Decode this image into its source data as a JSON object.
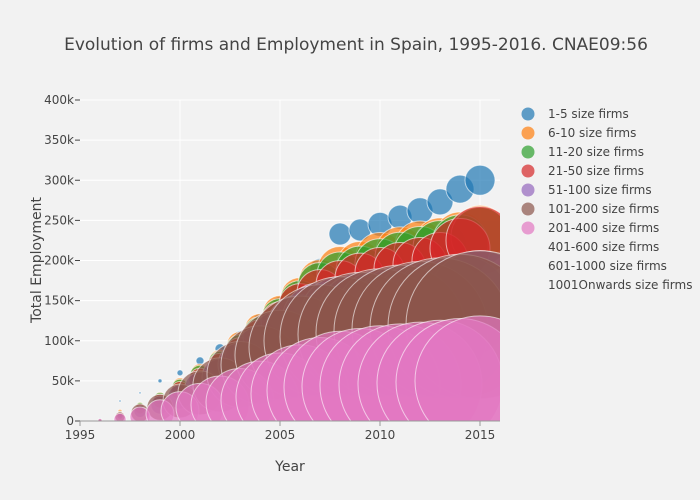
{
  "chart_data": {
    "type": "scatter",
    "subtype": "bubble",
    "title": "Evolution of firms and Employment in Spain, 1995-2016. CNAE09:56",
    "xlabel": "Year",
    "ylabel": "Total Employment",
    "xlim": [
      1995,
      2016
    ],
    "ylim": [
      0,
      400000
    ],
    "x_ticks": [
      1995,
      2000,
      2005,
      2010,
      2015
    ],
    "x_tick_labels": [
      "1995",
      "2000",
      "2005",
      "2010",
      "2015"
    ],
    "y_ticks": [
      0,
      50000,
      100000,
      150000,
      200000,
      250000,
      300000,
      350000,
      400000
    ],
    "y_tick_labels": [
      "0",
      "50k",
      "100k",
      "150k",
      "200k",
      "250k",
      "300k",
      "350k",
      "400k"
    ],
    "grid": true,
    "legend_position": "right",
    "series": [
      {
        "name": "1-5 size firms",
        "color": "#1f77b4",
        "x": [
          1996,
          1997,
          1998,
          1999,
          2000,
          2001,
          2002,
          2003,
          2004,
          2005,
          2006,
          2007,
          2008,
          2009,
          2010,
          2011,
          2012,
          2013,
          2014,
          2015
        ],
        "y": [
          3000,
          25000,
          35000,
          50000,
          60000,
          75000,
          90000,
          105000,
          125000,
          145000,
          165000,
          190000,
          233000,
          238000,
          245000,
          254000,
          262000,
          273000,
          289000,
          300000
        ],
        "size": [
          1,
          1,
          1,
          2,
          3,
          4,
          5,
          6,
          7,
          8,
          9,
          10,
          11,
          11,
          12,
          12,
          13,
          13,
          14,
          15
        ]
      },
      {
        "name": "6-10 size firms",
        "color": "#ff7f0e",
        "x": [
          1996,
          1997,
          1998,
          1999,
          2000,
          2001,
          2002,
          2003,
          2004,
          2005,
          2006,
          2007,
          2008,
          2009,
          2010,
          2011,
          2012,
          2013,
          2014,
          2015
        ],
        "y": [
          2000,
          12000,
          20000,
          30000,
          45000,
          60000,
          75000,
          95000,
          115000,
          135000,
          155000,
          175000,
          190000,
          195000,
          205000,
          212000,
          218000,
          222000,
          228000,
          235000
        ],
        "size": [
          1,
          2,
          3,
          5,
          7,
          9,
          11,
          13,
          15,
          17,
          19,
          21,
          22,
          23,
          24,
          24,
          25,
          25,
          26,
          27
        ]
      },
      {
        "name": "11-20 size firms",
        "color": "#2ca02c",
        "x": [
          1996,
          1997,
          1998,
          1999,
          2000,
          2001,
          2002,
          2003,
          2004,
          2005,
          2006,
          2007,
          2008,
          2009,
          2010,
          2011,
          2012,
          2013,
          2014,
          2015
        ],
        "y": [
          1500,
          10000,
          18000,
          28000,
          42000,
          57000,
          72000,
          90000,
          110000,
          130000,
          150000,
          170000,
          182000,
          188000,
          196000,
          204000,
          210000,
          216000,
          222000,
          230000
        ],
        "size": [
          1,
          2,
          4,
          6,
          8,
          10,
          12,
          14,
          16,
          18,
          20,
          22,
          23,
          24,
          25,
          25,
          26,
          27,
          28,
          29
        ]
      },
      {
        "name": "21-50 size firms",
        "color": "#d62728",
        "x": [
          1996,
          1997,
          1998,
          1999,
          2000,
          2001,
          2002,
          2003,
          2004,
          2005,
          2006,
          2007,
          2008,
          2009,
          2010,
          2011,
          2012,
          2013,
          2014,
          2015
        ],
        "y": [
          1000,
          8000,
          15000,
          25000,
          38000,
          52000,
          68000,
          85000,
          105000,
          125000,
          145000,
          160000,
          170000,
          178000,
          185000,
          190000,
          195000,
          200000,
          215000,
          225000
        ],
        "size": [
          1,
          3,
          5,
          7,
          9,
          11,
          13,
          15,
          17,
          19,
          21,
          23,
          24,
          25,
          25,
          26,
          27,
          28,
          30,
          34
        ]
      },
      {
        "name": "51-100 size firms",
        "color": "#9467bd",
        "x": [
          1996,
          1997,
          1998,
          1999,
          2000,
          2001,
          2002,
          2003,
          2004,
          2005,
          2006,
          2007,
          2008,
          2009,
          2010,
          2011,
          2012,
          2013,
          2014,
          2015
        ],
        "y": [
          800,
          6000,
          12000,
          20000,
          30000,
          42000,
          55000,
          70000,
          85000,
          100000,
          115000,
          125000,
          130000,
          132000,
          134000,
          136000,
          138000,
          140000,
          142000,
          145000
        ],
        "size": [
          1,
          3,
          6,
          9,
          12,
          15,
          18,
          22,
          26,
          30,
          34,
          38,
          40,
          42,
          44,
          46,
          48,
          50,
          52,
          54
        ]
      },
      {
        "name": "101-200 size firms",
        "color": "#8c564b",
        "x": [
          1996,
          1997,
          1998,
          1999,
          2000,
          2001,
          2002,
          2003,
          2004,
          2005,
          2006,
          2007,
          2008,
          2009,
          2010,
          2011,
          2012,
          2013,
          2014,
          2015
        ],
        "y": [
          600,
          5000,
          10000,
          17000,
          25000,
          35000,
          45000,
          58000,
          70000,
          82000,
          92000,
          100000,
          105000,
          108000,
          110000,
          112000,
          114000,
          116000,
          118000,
          120000
        ],
        "size": [
          2,
          5,
          9,
          13,
          17,
          22,
          27,
          33,
          39,
          45,
          51,
          56,
          60,
          62,
          64,
          66,
          68,
          70,
          72,
          74
        ]
      },
      {
        "name": "201-400 size firms",
        "color": "#e377c2",
        "x": [
          1996,
          1997,
          1998,
          1999,
          2000,
          2001,
          2002,
          2003,
          2004,
          2005,
          2006,
          2007,
          2008,
          2009,
          2010,
          2011,
          2012,
          2013,
          2014,
          2015
        ],
        "y": [
          300,
          2000,
          5000,
          9000,
          13000,
          17000,
          20000,
          23000,
          26000,
          30000,
          34000,
          38000,
          42000,
          43000,
          44000,
          45000,
          46000,
          47000,
          48000,
          50000
        ],
        "size": [
          2,
          6,
          10,
          14,
          19,
          24,
          29,
          34,
          39,
          44,
          49,
          53,
          56,
          58,
          60,
          61,
          62,
          63,
          64,
          65
        ]
      },
      {
        "name": "401-600 size firms",
        "color": null,
        "x": [],
        "y": [],
        "size": []
      },
      {
        "name": "601-1000 size firms",
        "color": null,
        "x": [],
        "y": [],
        "size": []
      },
      {
        "name": "1001Onwards size firms",
        "color": null,
        "x": [],
        "y": [],
        "size": []
      }
    ]
  }
}
